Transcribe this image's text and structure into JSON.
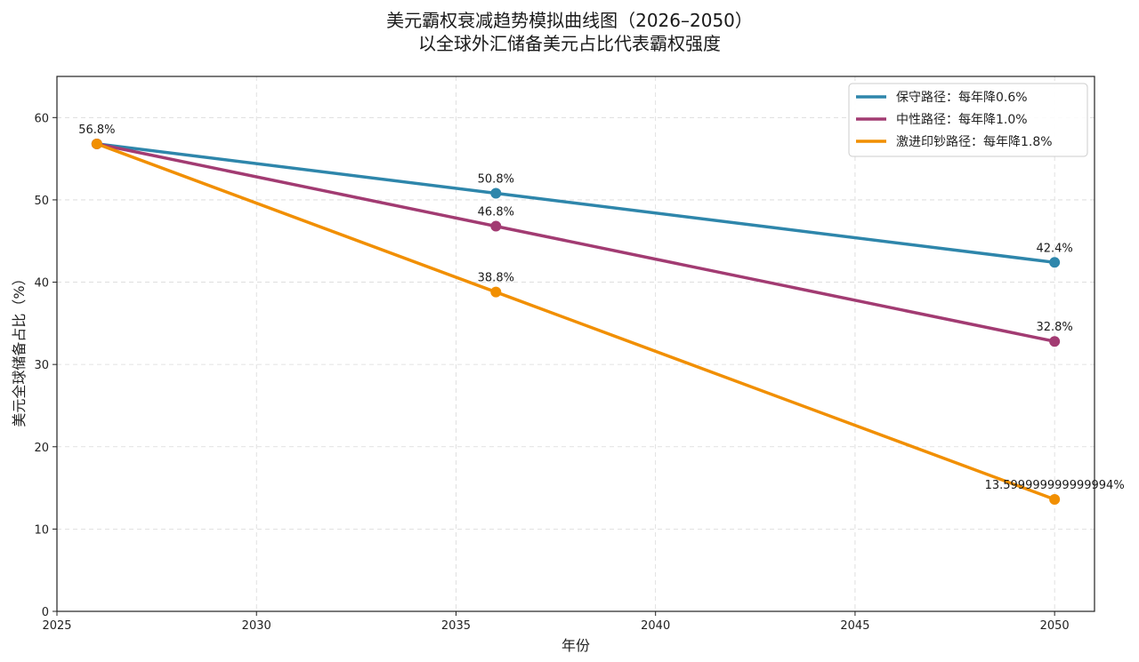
{
  "chart_data": {
    "type": "line",
    "title": "美元霸权衰减趋势模拟曲线图（2026–2050）",
    "subtitle": "以全球外汇储备美元占比代表霸权强度",
    "xlabel": "年份",
    "ylabel": "美元全球储备占比（%）",
    "xlim": [
      2025,
      2051
    ],
    "ylim": [
      0,
      65
    ],
    "xticks": [
      2025,
      2030,
      2035,
      2040,
      2045,
      2050
    ],
    "yticks": [
      0,
      10,
      20,
      30,
      40,
      50,
      60
    ],
    "grid": true,
    "legend_position": "top-right",
    "x": [
      2026,
      2036,
      2050
    ],
    "series": [
      {
        "name": "保守路径：每年降0.6%",
        "color": "#2E86AB",
        "values": [
          56.8,
          50.8,
          42.4
        ],
        "labels": [
          "",
          "50.8%",
          "42.4%"
        ]
      },
      {
        "name": "中性路径：每年降1.0%",
        "color": "#A23B72",
        "values": [
          56.8,
          46.8,
          32.8
        ],
        "labels": [
          "",
          "46.8%",
          "32.8%"
        ]
      },
      {
        "name": "激进印钞路径：每年降1.8%",
        "color": "#F18F01",
        "values": [
          56.8,
          38.8,
          13.6
        ],
        "labels": [
          "56.8%",
          "38.8%",
          "13.599999999999994%"
        ]
      }
    ]
  }
}
